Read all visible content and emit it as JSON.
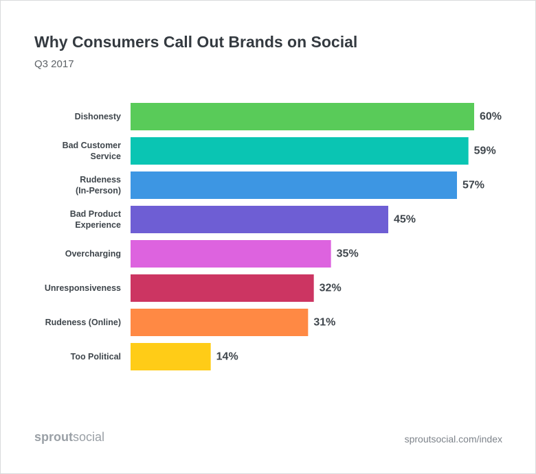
{
  "chart_data": {
    "type": "bar",
    "orientation": "horizontal",
    "title": "Why Consumers Call Out Brands on Social",
    "subtitle": "Q3 2017",
    "categories": [
      [
        "Dishonesty"
      ],
      [
        "Bad Customer",
        "Service"
      ],
      [
        "Rudeness",
        "(In-Person)"
      ],
      [
        "Bad Product",
        "Experience"
      ],
      [
        "Overcharging"
      ],
      [
        "Unresponsiveness"
      ],
      [
        "Rudeness (Online)"
      ],
      [
        "Too Political"
      ]
    ],
    "values": [
      60,
      59,
      57,
      45,
      35,
      32,
      31,
      14
    ],
    "value_labels": [
      "60%",
      "59%",
      "57%",
      "45%",
      "35%",
      "32%",
      "31%",
      "14%"
    ],
    "colors": [
      "#59cb59",
      "#0ac5b3",
      "#3d96e3",
      "#6e5ed4",
      "#dd63df",
      "#cc3562",
      "#ff8944",
      "#ffcc17"
    ],
    "xlim": [
      0,
      60
    ],
    "xlabel": "",
    "ylabel": "",
    "grid": false
  },
  "footer": {
    "brand_bold": "sprout",
    "brand_light": "social",
    "source": "sproutsocial.com/index"
  }
}
